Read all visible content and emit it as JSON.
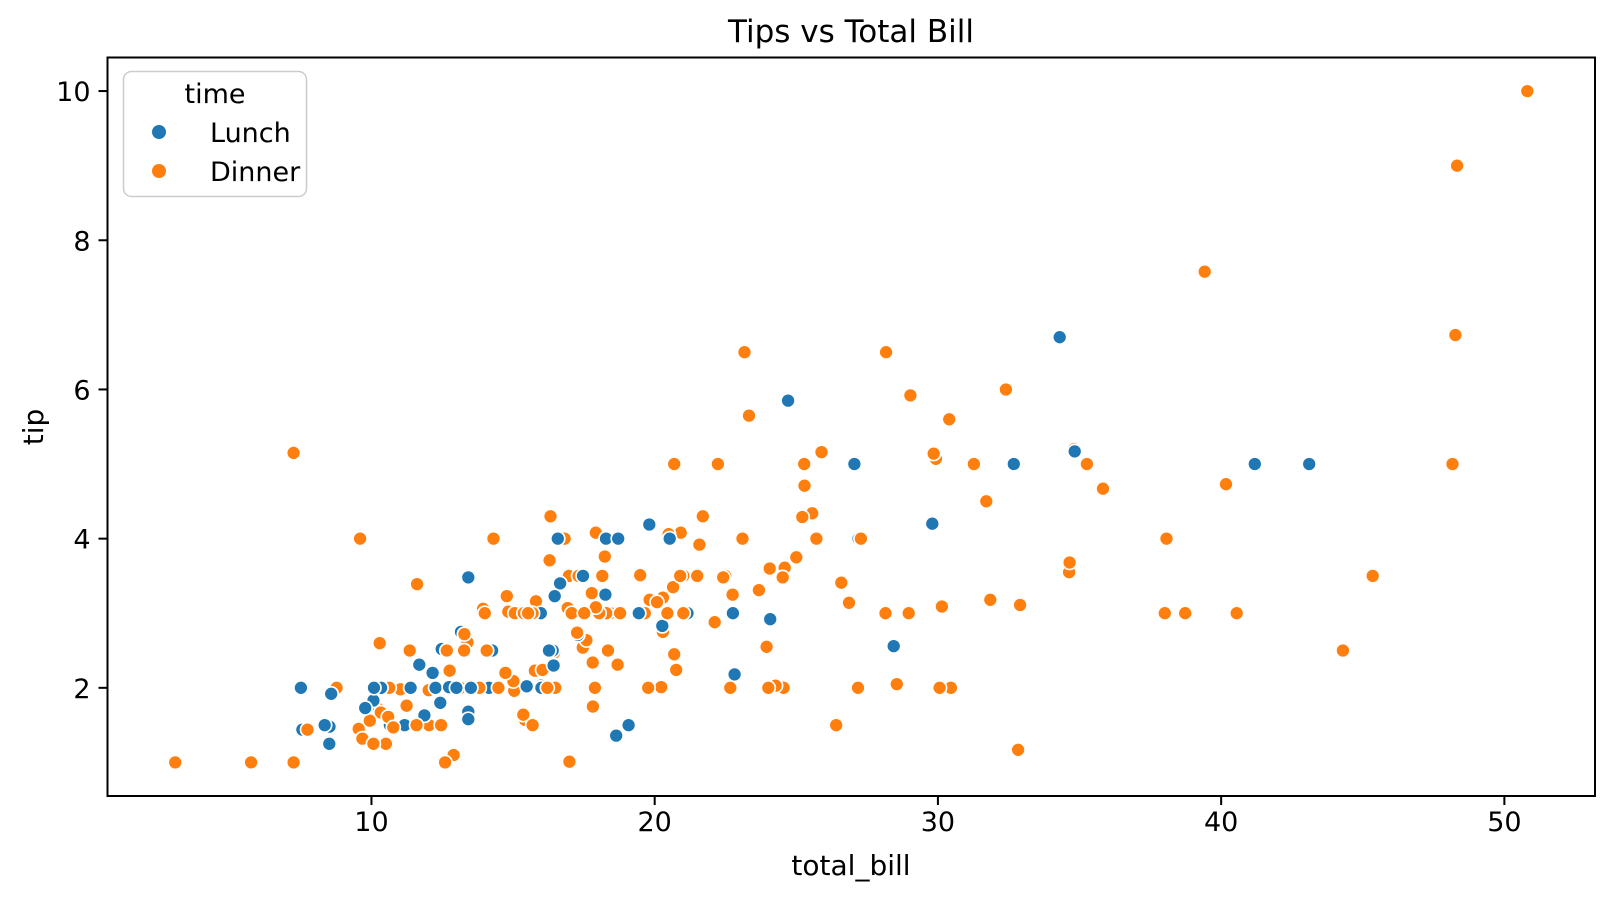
{
  "chart_data": {
    "type": "scatter",
    "title": "Tips vs Total Bill",
    "xlabel": "total_bill",
    "ylabel": "tip",
    "xlim": [
      0.68,
      53.2
    ],
    "ylim": [
      0.55,
      10.45
    ],
    "xticks": [
      10,
      20,
      30,
      40,
      50
    ],
    "yticks": [
      2,
      4,
      6,
      8,
      10
    ],
    "grid": false,
    "marker": {
      "edge_color": "#ffffff"
    },
    "legend": {
      "title": "time",
      "position": "upper left",
      "entries": [
        {
          "label": "Lunch",
          "color": "#1f77b4"
        },
        {
          "label": "Dinner",
          "color": "#ff7f0e"
        }
      ]
    },
    "series_names": [
      "Lunch",
      "Dinner"
    ],
    "points_format": [
      "total_bill",
      "tip",
      "series_index"
    ],
    "points": [
      [
        16.99,
        1.01,
        1
      ],
      [
        10.34,
        1.66,
        1
      ],
      [
        21.01,
        3.5,
        1
      ],
      [
        23.68,
        3.31,
        1
      ],
      [
        24.59,
        3.61,
        1
      ],
      [
        25.29,
        4.71,
        1
      ],
      [
        8.77,
        2.0,
        1
      ],
      [
        26.88,
        3.12,
        1
      ],
      [
        15.04,
        1.96,
        1
      ],
      [
        14.78,
        3.23,
        1
      ],
      [
        10.27,
        1.71,
        1
      ],
      [
        35.26,
        5.0,
        1
      ],
      [
        15.42,
        1.57,
        1
      ],
      [
        18.43,
        3.0,
        1
      ],
      [
        14.83,
        3.02,
        1
      ],
      [
        21.58,
        3.92,
        1
      ],
      [
        10.33,
        1.67,
        1
      ],
      [
        16.29,
        3.71,
        1
      ],
      [
        16.97,
        3.5,
        1
      ],
      [
        20.65,
        3.35,
        1
      ],
      [
        17.92,
        4.08,
        1
      ],
      [
        20.29,
        2.75,
        1
      ],
      [
        15.77,
        2.23,
        1
      ],
      [
        39.42,
        7.58,
        1
      ],
      [
        19.82,
        3.18,
        1
      ],
      [
        17.81,
        2.34,
        1
      ],
      [
        13.37,
        2.0,
        1
      ],
      [
        12.69,
        2.0,
        1
      ],
      [
        21.7,
        4.3,
        1
      ],
      [
        19.65,
        3.0,
        1
      ],
      [
        9.55,
        1.45,
        1
      ],
      [
        18.35,
        2.5,
        1
      ],
      [
        15.06,
        3.0,
        1
      ],
      [
        20.69,
        2.45,
        1
      ],
      [
        17.78,
        3.27,
        1
      ],
      [
        24.06,
        3.6,
        1
      ],
      [
        16.31,
        2.0,
        1
      ],
      [
        16.93,
        3.07,
        1
      ],
      [
        18.69,
        2.31,
        1
      ],
      [
        31.27,
        5.0,
        1
      ],
      [
        16.04,
        2.24,
        1
      ],
      [
        17.46,
        2.54,
        1
      ],
      [
        13.94,
        3.06,
        1
      ],
      [
        9.68,
        1.32,
        1
      ],
      [
        30.4,
        5.6,
        1
      ],
      [
        18.29,
        3.0,
        1
      ],
      [
        22.23,
        5.0,
        1
      ],
      [
        32.4,
        6.0,
        1
      ],
      [
        28.55,
        2.05,
        1
      ],
      [
        18.04,
        3.0,
        1
      ],
      [
        12.54,
        2.5,
        1
      ],
      [
        10.29,
        2.6,
        1
      ],
      [
        34.81,
        5.2,
        1
      ],
      [
        9.94,
        1.56,
        1
      ],
      [
        25.56,
        4.34,
        1
      ],
      [
        19.49,
        3.51,
        1
      ],
      [
        38.01,
        3.0,
        1
      ],
      [
        26.41,
        1.5,
        1
      ],
      [
        11.24,
        1.76,
        1
      ],
      [
        48.27,
        6.73,
        1
      ],
      [
        20.29,
        3.21,
        1
      ],
      [
        13.81,
        2.0,
        1
      ],
      [
        11.02,
        1.98,
        1
      ],
      [
        18.29,
        3.76,
        1
      ],
      [
        17.59,
        2.64,
        1
      ],
      [
        20.08,
        3.15,
        1
      ],
      [
        16.45,
        2.47,
        1
      ],
      [
        3.07,
        1.0,
        1
      ],
      [
        20.23,
        2.01,
        1
      ],
      [
        15.01,
        2.09,
        1
      ],
      [
        12.02,
        1.97,
        1
      ],
      [
        17.07,
        3.0,
        1
      ],
      [
        26.86,
        3.14,
        1
      ],
      [
        25.28,
        5.0,
        1
      ],
      [
        14.73,
        2.2,
        1
      ],
      [
        10.51,
        1.25,
        1
      ],
      [
        17.92,
        3.08,
        1
      ],
      [
        27.2,
        4.0,
        0
      ],
      [
        22.76,
        3.0,
        0
      ],
      [
        17.29,
        2.71,
        0
      ],
      [
        19.44,
        3.0,
        0
      ],
      [
        16.66,
        3.4,
        0
      ],
      [
        10.07,
        1.83,
        0
      ],
      [
        32.68,
        5.0,
        0
      ],
      [
        15.98,
        2.03,
        0
      ],
      [
        34.83,
        5.17,
        0
      ],
      [
        13.03,
        2.0,
        0
      ],
      [
        18.28,
        4.0,
        0
      ],
      [
        24.71,
        5.85,
        0
      ],
      [
        21.16,
        3.0,
        0
      ],
      [
        28.97,
        3.0,
        1
      ],
      [
        22.49,
        3.5,
        1
      ],
      [
        5.75,
        1.0,
        1
      ],
      [
        16.32,
        4.3,
        1
      ],
      [
        22.75,
        3.25,
        1
      ],
      [
        40.17,
        4.73,
        1
      ],
      [
        27.28,
        4.0,
        1
      ],
      [
        12.03,
        1.5,
        1
      ],
      [
        21.01,
        3.0,
        1
      ],
      [
        12.46,
        1.5,
        1
      ],
      [
        11.35,
        2.5,
        1
      ],
      [
        15.38,
        3.0,
        1
      ],
      [
        44.3,
        2.5,
        1
      ],
      [
        22.42,
        3.48,
        1
      ],
      [
        20.92,
        4.08,
        1
      ],
      [
        15.36,
        1.64,
        1
      ],
      [
        20.49,
        4.06,
        1
      ],
      [
        25.21,
        4.29,
        1
      ],
      [
        18.24,
        3.76,
        1
      ],
      [
        14.31,
        4.0,
        1
      ],
      [
        14.0,
        3.0,
        1
      ],
      [
        7.25,
        1.0,
        1
      ],
      [
        38.07,
        4.0,
        1
      ],
      [
        23.95,
        2.55,
        1
      ],
      [
        25.71,
        4.0,
        1
      ],
      [
        17.31,
        3.5,
        1
      ],
      [
        29.93,
        5.07,
        1
      ],
      [
        10.65,
        1.5,
        0
      ],
      [
        12.43,
        1.8,
        0
      ],
      [
        24.08,
        2.92,
        0
      ],
      [
        11.69,
        2.31,
        0
      ],
      [
        13.42,
        1.68,
        0
      ],
      [
        14.26,
        2.5,
        0
      ],
      [
        15.95,
        2.0,
        0
      ],
      [
        12.48,
        2.52,
        0
      ],
      [
        29.8,
        4.2,
        0
      ],
      [
        8.52,
        1.48,
        0
      ],
      [
        14.52,
        2.0,
        0
      ],
      [
        11.38,
        2.0,
        0
      ],
      [
        22.82,
        2.18,
        0
      ],
      [
        19.08,
        1.5,
        0
      ],
      [
        20.27,
        2.83,
        0
      ],
      [
        11.17,
        1.5,
        0
      ],
      [
        12.26,
        2.0,
        0
      ],
      [
        18.26,
        3.25,
        0
      ],
      [
        8.51,
        1.25,
        0
      ],
      [
        10.33,
        2.0,
        0
      ],
      [
        14.15,
        2.0,
        0
      ],
      [
        16.0,
        2.0,
        0
      ],
      [
        13.16,
        2.75,
        0
      ],
      [
        17.47,
        3.5,
        0
      ],
      [
        34.3,
        6.7,
        0
      ],
      [
        41.19,
        5.0,
        0
      ],
      [
        27.05,
        5.0,
        0
      ],
      [
        16.43,
        2.3,
        0
      ],
      [
        8.35,
        1.5,
        0
      ],
      [
        18.64,
        1.36,
        0
      ],
      [
        11.87,
        1.63,
        0
      ],
      [
        9.78,
        1.73,
        0
      ],
      [
        7.51,
        2.0,
        0
      ],
      [
        14.07,
        2.5,
        1
      ],
      [
        13.13,
        2.0,
        1
      ],
      [
        17.26,
        2.74,
        1
      ],
      [
        24.55,
        2.0,
        1
      ],
      [
        19.77,
        2.0,
        1
      ],
      [
        29.85,
        5.14,
        1
      ],
      [
        48.17,
        5.0,
        1
      ],
      [
        25.0,
        3.75,
        1
      ],
      [
        13.39,
        2.61,
        1
      ],
      [
        16.49,
        2.0,
        1
      ],
      [
        21.5,
        3.5,
        1
      ],
      [
        12.66,
        2.5,
        1
      ],
      [
        16.21,
        2.0,
        1
      ],
      [
        13.81,
        2.0,
        1
      ],
      [
        17.51,
        3.0,
        1
      ],
      [
        24.52,
        3.48,
        1
      ],
      [
        20.76,
        2.24,
        1
      ],
      [
        31.71,
        4.5,
        1
      ],
      [
        10.59,
        1.61,
        1
      ],
      [
        10.63,
        2.0,
        1
      ],
      [
        50.81,
        10.0,
        1
      ],
      [
        15.81,
        3.16,
        1
      ],
      [
        7.25,
        5.15,
        1
      ],
      [
        31.85,
        3.18,
        1
      ],
      [
        16.82,
        4.0,
        1
      ],
      [
        32.9,
        3.11,
        1
      ],
      [
        17.89,
        2.0,
        1
      ],
      [
        14.48,
        2.0,
        1
      ],
      [
        9.6,
        4.0,
        1
      ],
      [
        34.63,
        3.55,
        1
      ],
      [
        34.65,
        3.68,
        1
      ],
      [
        23.33,
        5.65,
        1
      ],
      [
        45.35,
        3.5,
        1
      ],
      [
        23.17,
        6.5,
        1
      ],
      [
        40.55,
        3.0,
        1
      ],
      [
        20.69,
        5.0,
        1
      ],
      [
        20.9,
        3.5,
        1
      ],
      [
        30.46,
        2.0,
        1
      ],
      [
        18.15,
        3.5,
        1
      ],
      [
        23.1,
        4.0,
        1
      ],
      [
        15.69,
        1.5,
        1
      ],
      [
        19.81,
        4.19,
        0
      ],
      [
        28.44,
        2.56,
        0
      ],
      [
        15.48,
        2.02,
        0
      ],
      [
        16.58,
        4.0,
        0
      ],
      [
        7.56,
        1.44,
        0
      ],
      [
        10.34,
        2.0,
        0
      ],
      [
        43.11,
        5.0,
        0
      ],
      [
        13.0,
        2.0,
        0
      ],
      [
        13.51,
        2.0,
        0
      ],
      [
        18.71,
        4.0,
        0
      ],
      [
        12.74,
        2.01,
        0
      ],
      [
        13.0,
        2.0,
        0
      ],
      [
        16.4,
        2.5,
        0
      ],
      [
        20.53,
        4.0,
        0
      ],
      [
        16.47,
        3.23,
        0
      ],
      [
        26.59,
        3.41,
        1
      ],
      [
        38.73,
        3.0,
        1
      ],
      [
        24.27,
        2.03,
        1
      ],
      [
        12.76,
        2.23,
        1
      ],
      [
        30.06,
        2.0,
        1
      ],
      [
        25.89,
        5.16,
        1
      ],
      [
        48.33,
        9.0,
        1
      ],
      [
        13.27,
        2.5,
        1
      ],
      [
        28.17,
        6.5,
        1
      ],
      [
        12.9,
        1.1,
        1
      ],
      [
        28.15,
        3.0,
        1
      ],
      [
        11.59,
        1.5,
        1
      ],
      [
        7.74,
        1.44,
        1
      ],
      [
        30.14,
        3.09,
        1
      ],
      [
        12.16,
        2.2,
        0
      ],
      [
        13.42,
        3.48,
        0
      ],
      [
        8.58,
        1.92,
        0
      ],
      [
        15.98,
        3.0,
        0
      ],
      [
        13.42,
        1.58,
        0
      ],
      [
        16.27,
        2.5,
        0
      ],
      [
        10.09,
        2.0,
        0
      ],
      [
        20.45,
        3.0,
        1
      ],
      [
        13.28,
        2.72,
        1
      ],
      [
        22.12,
        2.88,
        1
      ],
      [
        24.01,
        2.0,
        1
      ],
      [
        15.69,
        3.0,
        1
      ],
      [
        11.61,
        3.39,
        1
      ],
      [
        10.77,
        1.47,
        1
      ],
      [
        15.53,
        3.0,
        1
      ],
      [
        10.07,
        1.25,
        1
      ],
      [
        12.6,
        1.0,
        1
      ],
      [
        32.83,
        1.17,
        1
      ],
      [
        35.83,
        4.67,
        1
      ],
      [
        29.03,
        5.92,
        1
      ],
      [
        27.18,
        2.0,
        1
      ],
      [
        22.67,
        2.0,
        1
      ],
      [
        17.82,
        1.75,
        1
      ],
      [
        18.78,
        3.0,
        1
      ]
    ]
  }
}
